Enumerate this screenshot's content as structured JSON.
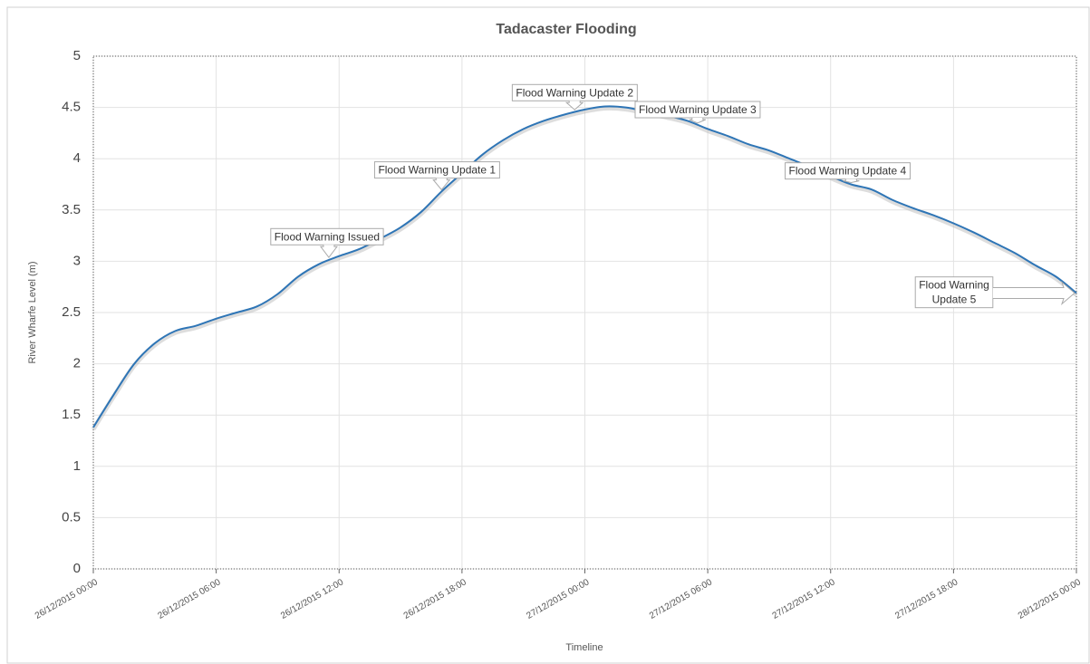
{
  "chart_data": {
    "type": "line",
    "title": "Tadacaster Flooding",
    "x_label": "Timeline",
    "y_label": "River Wharfe Level (m)",
    "x": [
      "2015-12-26T00:00",
      "2015-12-26T01:00",
      "2015-12-26T02:00",
      "2015-12-26T03:00",
      "2015-12-26T04:00",
      "2015-12-26T05:00",
      "2015-12-26T06:00",
      "2015-12-26T07:00",
      "2015-12-26T08:00",
      "2015-12-26T09:00",
      "2015-12-26T10:00",
      "2015-12-26T11:00",
      "2015-12-26T12:00",
      "2015-12-26T13:00",
      "2015-12-26T14:00",
      "2015-12-26T15:00",
      "2015-12-26T16:00",
      "2015-12-26T17:00",
      "2015-12-26T18:00",
      "2015-12-26T19:00",
      "2015-12-26T20:00",
      "2015-12-26T21:00",
      "2015-12-26T22:00",
      "2015-12-26T23:00",
      "2015-12-27T00:00",
      "2015-12-27T01:00",
      "2015-12-27T02:00",
      "2015-12-27T03:00",
      "2015-12-27T04:00",
      "2015-12-27T05:00",
      "2015-12-27T06:00",
      "2015-12-27T07:00",
      "2015-12-27T08:00",
      "2015-12-27T09:00",
      "2015-12-27T10:00",
      "2015-12-27T11:00",
      "2015-12-27T12:00",
      "2015-12-27T13:00",
      "2015-12-27T14:00",
      "2015-12-27T15:00",
      "2015-12-27T16:00",
      "2015-12-27T17:00",
      "2015-12-27T18:00",
      "2015-12-27T19:00",
      "2015-12-27T20:00",
      "2015-12-27T21:00",
      "2015-12-27T22:00",
      "2015-12-27T23:00",
      "2015-12-28T00:00"
    ],
    "series": [
      {
        "name": "River Wharfe Level",
        "color": "#2e75b6",
        "values": [
          1.38,
          1.7,
          2.0,
          2.2,
          2.32,
          2.37,
          2.44,
          2.5,
          2.56,
          2.68,
          2.85,
          2.97,
          3.05,
          3.12,
          3.22,
          3.33,
          3.48,
          3.68,
          3.86,
          4.04,
          4.18,
          4.29,
          4.37,
          4.43,
          4.48,
          4.51,
          4.5,
          4.46,
          4.42,
          4.37,
          4.29,
          4.22,
          4.14,
          4.08,
          4.0,
          3.92,
          3.83,
          3.75,
          3.7,
          3.6,
          3.52,
          3.45,
          3.37,
          3.28,
          3.18,
          3.08,
          2.96,
          2.85,
          2.69
        ]
      }
    ],
    "xlim": [
      "2015-12-26T00:00",
      "2015-12-28T00:00"
    ],
    "xticks": [
      {
        "value": "2015-12-26T00:00",
        "label": "26/12/2015 00:00"
      },
      {
        "value": "2015-12-26T06:00",
        "label": "26/12/2015 06:00"
      },
      {
        "value": "2015-12-26T12:00",
        "label": "26/12/2015 12:00"
      },
      {
        "value": "2015-12-26T18:00",
        "label": "26/12/2015 18:00"
      },
      {
        "value": "2015-12-27T00:00",
        "label": "27/12/2015 00:00"
      },
      {
        "value": "2015-12-27T06:00",
        "label": "27/12/2015 06:00"
      },
      {
        "value": "2015-12-27T12:00",
        "label": "27/12/2015 12:00"
      },
      {
        "value": "2015-12-27T18:00",
        "label": "27/12/2015 18:00"
      },
      {
        "value": "2015-12-28T00:00",
        "label": "28/12/2015 00:00"
      }
    ],
    "ylim": [
      0,
      5
    ],
    "yticks": [
      0,
      0.5,
      1,
      1.5,
      2,
      2.5,
      3,
      3.5,
      4,
      4.5,
      5
    ],
    "grid": true,
    "annotations": [
      {
        "text": "Flood Warning Issued",
        "x": "2015-12-26T11:30",
        "y": 3.02
      },
      {
        "text": "Flood Warning Update 1",
        "x": "2015-12-26T17:00",
        "y": 3.68
      },
      {
        "text": "Flood Warning Update 2",
        "x": "2015-12-26T23:30",
        "y": 4.46
      },
      {
        "text": "Flood Warning Update 3",
        "x": "2015-12-27T05:30",
        "y": 4.33
      },
      {
        "text": "Flood Warning Update 4",
        "x": "2015-12-27T13:00",
        "y": 3.75
      },
      {
        "text": "Flood Warning Update 5",
        "x": "2015-12-28T00:00",
        "y": 2.69
      }
    ]
  }
}
